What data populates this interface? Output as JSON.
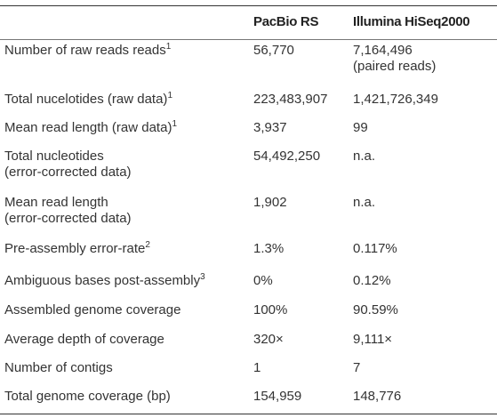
{
  "table": {
    "header": {
      "pacbio": "PacBio RS",
      "illumina": "Illumina HiSeq2000"
    },
    "rows": [
      {
        "label": [
          "Number of raw reads reads"
        ],
        "sup": "1",
        "pacbio": [
          "56,770"
        ],
        "illumina": [
          "7,164,496",
          "(paired reads)"
        ]
      },
      {
        "label": [
          "Total nucelotides (raw data)"
        ],
        "sup": "1",
        "pacbio": [
          "223,483,907"
        ],
        "illumina": [
          "1,421,726,349"
        ]
      },
      {
        "label": [
          "Mean read length (raw data)"
        ],
        "sup": "1",
        "pacbio": [
          "3,937"
        ],
        "illumina": [
          "99"
        ]
      },
      {
        "label": [
          "Total nucleotides",
          "(error-corrected data)"
        ],
        "pacbio": [
          "54,492,250"
        ],
        "illumina": [
          "n.a."
        ]
      },
      {
        "label": [
          "Mean read length",
          "(error-corrected data)"
        ],
        "pacbio": [
          "1,902"
        ],
        "illumina": [
          "n.a."
        ]
      },
      {
        "label": [
          "Pre-assembly error-rate"
        ],
        "sup": "2",
        "pacbio": [
          "1.3%"
        ],
        "illumina": [
          "0.117%"
        ]
      },
      {
        "label": [
          "Ambiguous bases post-assembly"
        ],
        "sup": "3",
        "pacbio": [
          "0%"
        ],
        "illumina": [
          "0.12%"
        ]
      },
      {
        "label": [
          "Assembled genome coverage"
        ],
        "pacbio": [
          "100%"
        ],
        "illumina": [
          "90.59%"
        ]
      },
      {
        "label": [
          "Average depth of coverage"
        ],
        "pacbio": [
          "320×"
        ],
        "illumina": [
          "9,111×"
        ]
      },
      {
        "label": [
          "Number of contigs"
        ],
        "pacbio": [
          "1"
        ],
        "illumina": [
          "7"
        ]
      },
      {
        "label": [
          "Total genome coverage (bp)"
        ],
        "pacbio": [
          "154,959"
        ],
        "illumina": [
          "148,776"
        ]
      }
    ]
  }
}
